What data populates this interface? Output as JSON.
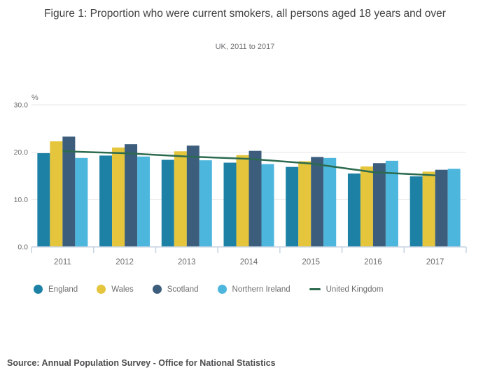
{
  "figure": {
    "title": "Figure 1: Proportion who were current smokers, all persons aged 18 years and over",
    "subtitle": "UK, 2011 to 2017",
    "source": "Source: Annual Population Survey - Office for National Statistics"
  },
  "chart_data": {
    "type": "bar",
    "title": "Figure 1: Proportion who were current smokers, all persons aged 18 years and over",
    "subtitle": "UK, 2011 to 2017",
    "categories": [
      "2011",
      "2012",
      "2013",
      "2014",
      "2015",
      "2016",
      "2017"
    ],
    "series": [
      {
        "name": "England",
        "type": "bar",
        "color": "#1c81a5",
        "values": [
          19.8,
          19.3,
          18.4,
          17.8,
          16.9,
          15.5,
          14.9
        ]
      },
      {
        "name": "Wales",
        "type": "bar",
        "color": "#e4c53c",
        "values": [
          22.3,
          21.0,
          20.2,
          19.4,
          18.1,
          17.0,
          15.9
        ]
      },
      {
        "name": "Scotland",
        "type": "bar",
        "color": "#3c5e7c",
        "values": [
          23.3,
          21.7,
          21.4,
          20.3,
          19.0,
          17.7,
          16.3
        ]
      },
      {
        "name": "Northern Ireland",
        "type": "bar",
        "color": "#4cb6dd",
        "values": [
          18.8,
          19.1,
          18.3,
          17.5,
          18.8,
          18.2,
          16.5
        ]
      },
      {
        "name": "United Kingdom",
        "type": "line",
        "color": "#2c6b4f",
        "values": [
          20.2,
          19.8,
          19.1,
          18.6,
          17.6,
          15.8,
          15.1
        ]
      }
    ],
    "xlabel": "",
    "ylabel": "%",
    "ylim": [
      0,
      30
    ],
    "yticks": [
      0,
      10,
      20,
      30
    ],
    "ytick_labels": [
      "0.0",
      "10.0",
      "20.0",
      "30.0"
    ],
    "grid": true,
    "legend_position": "bottom"
  },
  "colors": {
    "gridline": "#e7e7e7",
    "axis": "#c6d3e3",
    "axis_text": "#6b6b6b",
    "title_text": "#414042",
    "subtitle_text": "#6d6e71",
    "legend_text": "#6e6e6e",
    "source_text": "#4d4d4f"
  }
}
